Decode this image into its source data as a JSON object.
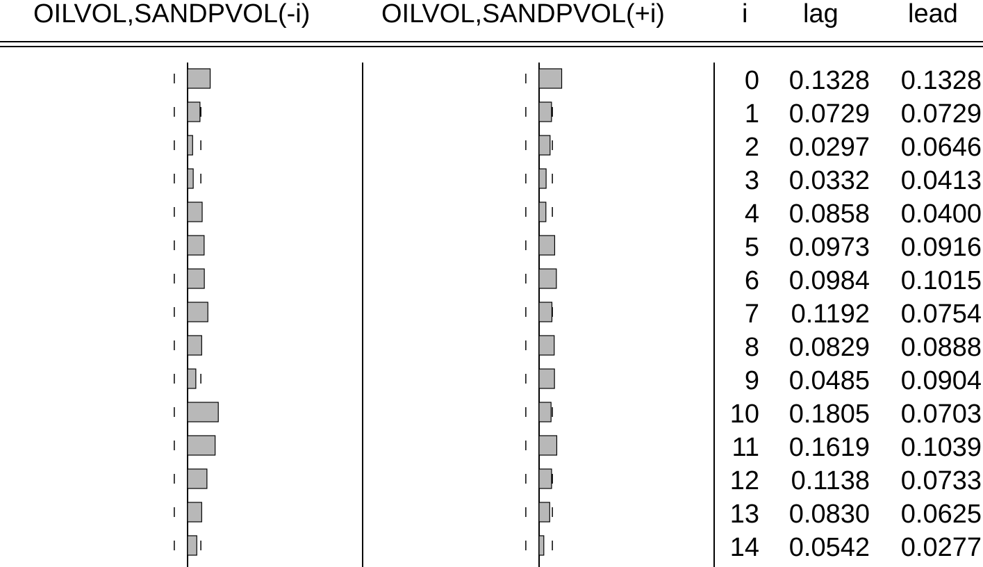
{
  "headers": {
    "col_lag": "OILVOL,SANDPVOL(-i)",
    "col_lead": "OILVOL,SANDPVOL(+i)",
    "col_i": "i",
    "col_lag_values": "lag",
    "col_lead_values": "lead"
  },
  "colors": {
    "bar_fill": "#b8b8b8",
    "bar_stroke": "#000000"
  },
  "chart_data": {
    "type": "bar",
    "orientation": "horizontal",
    "x_range": [
      -1,
      1
    ],
    "significance_bound": 0.078,
    "grid": false,
    "series": [
      {
        "name": "OILVOL,SANDPVOL(-i)",
        "values": [
          0.1328,
          0.0729,
          0.0297,
          0.0332,
          0.0858,
          0.0973,
          0.0984,
          0.1192,
          0.0829,
          0.0485,
          0.1805,
          0.1619,
          0.1138,
          0.083,
          0.0542
        ]
      },
      {
        "name": "OILVOL,SANDPVOL(+i)",
        "values": [
          0.1328,
          0.0729,
          0.0646,
          0.0413,
          0.04,
          0.0916,
          0.1015,
          0.0754,
          0.0888,
          0.0904,
          0.0703,
          0.1039,
          0.0733,
          0.0625,
          0.0277
        ]
      }
    ],
    "rows": [
      {
        "i": "0",
        "lag": "0.1328",
        "lead": "0.1328"
      },
      {
        "i": "1",
        "lag": "0.0729",
        "lead": "0.0729"
      },
      {
        "i": "2",
        "lag": "0.0297",
        "lead": "0.0646"
      },
      {
        "i": "3",
        "lag": "0.0332",
        "lead": "0.0413"
      },
      {
        "i": "4",
        "lag": "0.0858",
        "lead": "0.0400"
      },
      {
        "i": "5",
        "lag": "0.0973",
        "lead": "0.0916"
      },
      {
        "i": "6",
        "lag": "0.0984",
        "lead": "0.1015"
      },
      {
        "i": "7",
        "lag": "0.1192",
        "lead": "0.0754"
      },
      {
        "i": "8",
        "lag": "0.0829",
        "lead": "0.0888"
      },
      {
        "i": "9",
        "lag": "0.0485",
        "lead": "0.0904"
      },
      {
        "i": "10",
        "lag": "0.1805",
        "lead": "0.0703"
      },
      {
        "i": "11",
        "lag": "0.1619",
        "lead": "0.1039"
      },
      {
        "i": "12",
        "lag": "0.1138",
        "lead": "0.0733"
      },
      {
        "i": "13",
        "lag": "0.0830",
        "lead": "0.0625"
      },
      {
        "i": "14",
        "lag": "0.0542",
        "lead": "0.0277"
      }
    ]
  }
}
